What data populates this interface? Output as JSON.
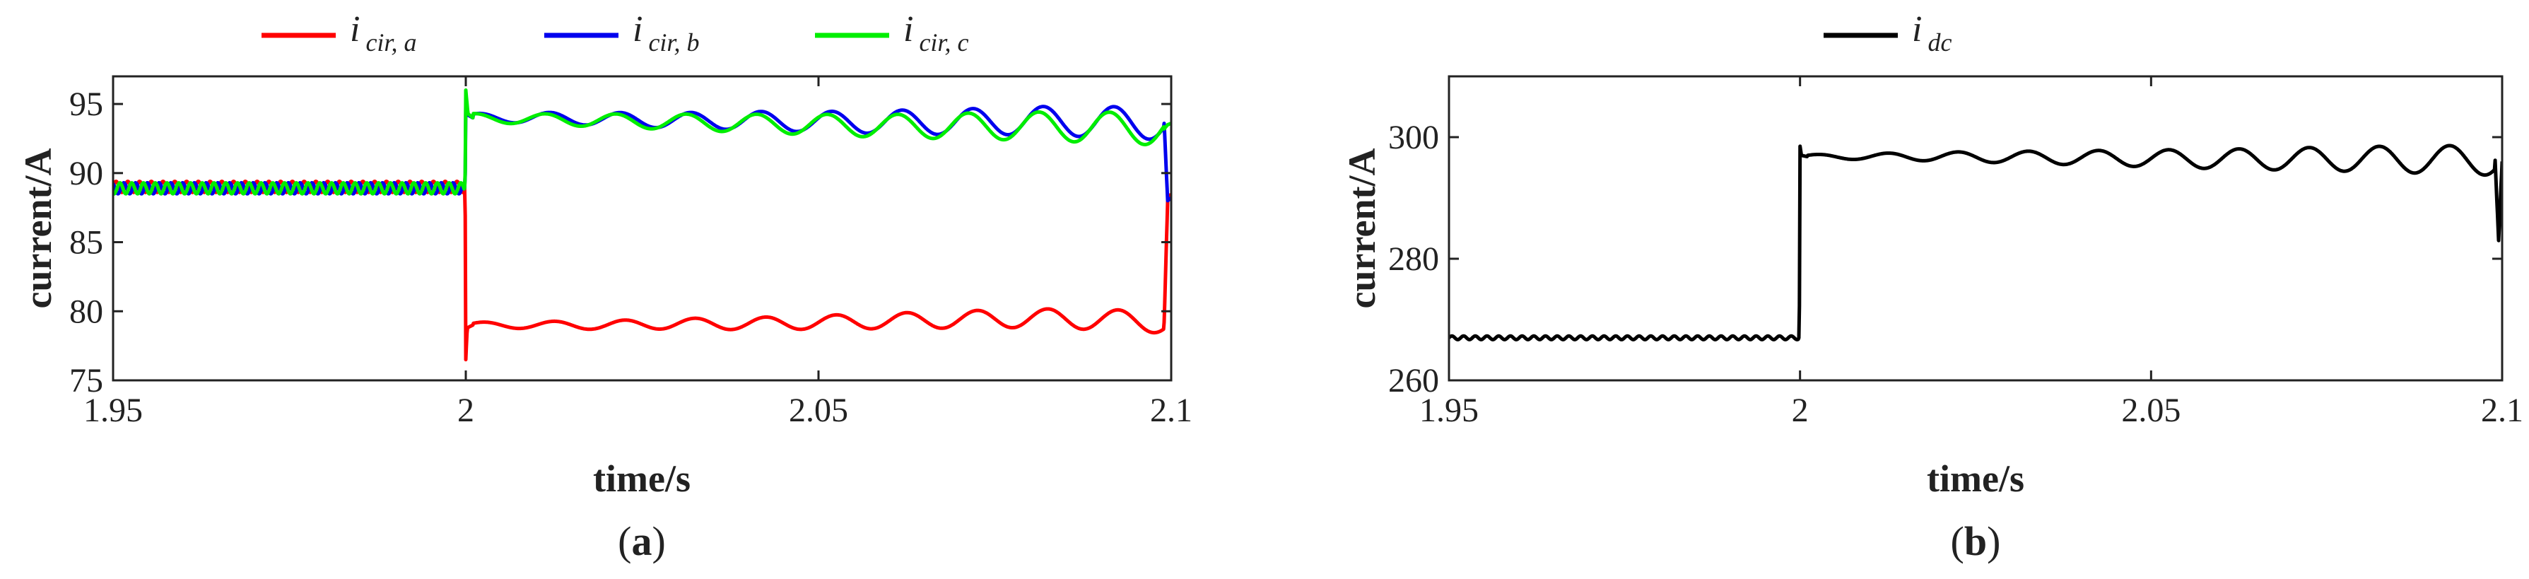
{
  "chart_data": [
    {
      "type": "line",
      "panel_label": "a",
      "xlabel": "time/s",
      "ylabel": "current/A",
      "xlim": [
        1.95,
        2.1
      ],
      "ylim": [
        75,
        97
      ],
      "xticks": [
        {
          "value": 1.95,
          "label": "1.95"
        },
        {
          "value": 2.0,
          "label": "2"
        },
        {
          "value": 2.05,
          "label": "2.05"
        },
        {
          "value": 2.1,
          "label": "2.1"
        }
      ],
      "yticks": [
        {
          "value": 75,
          "label": "75"
        },
        {
          "value": 80,
          "label": "80"
        },
        {
          "value": 85,
          "label": "85"
        },
        {
          "value": 90,
          "label": "90"
        },
        {
          "value": 95,
          "label": "95"
        }
      ],
      "grid": false,
      "legend_position": "top",
      "step_time": 2.0,
      "series": [
        {
          "name": "i_cir,a",
          "legend_main": "i",
          "legend_sub": "cir, a",
          "color": "#ff0000",
          "x": [
            1.95,
            1.9999,
            2.0,
            2.0002,
            2.001,
            2.01,
            2.02,
            2.03,
            2.04,
            2.05,
            2.06,
            2.07,
            2.08,
            2.09,
            2.099,
            2.0995,
            2.1
          ],
          "y": [
            89.0,
            89.0,
            76.5,
            78.8,
            79.0,
            79.0,
            79.0,
            79.1,
            79.1,
            79.2,
            79.3,
            79.4,
            79.5,
            79.4,
            79.2,
            88.0,
            88.5
          ],
          "ripple_before_step": 0.4,
          "ripple_after_step": [
            0.2,
            0.8
          ]
        },
        {
          "name": "i_cir,b",
          "legend_main": "i",
          "legend_sub": "cir, b",
          "color": "#0000ee",
          "x": [
            1.95,
            1.9999,
            2.0,
            2.0003,
            2.001,
            2.01,
            2.02,
            2.03,
            2.04,
            2.05,
            2.06,
            2.07,
            2.08,
            2.09,
            2.099,
            2.0995,
            2.1
          ],
          "y": [
            88.9,
            88.9,
            94.8,
            94.2,
            94.0,
            94.0,
            93.9,
            93.8,
            93.8,
            93.7,
            93.7,
            93.7,
            93.8,
            93.7,
            93.6,
            88.0,
            88.2
          ],
          "ripple_before_step": 0.4,
          "ripple_after_step": [
            0.3,
            1.2
          ]
        },
        {
          "name": "i_cir,c",
          "legend_main": "i",
          "legend_sub": "cir, c",
          "color": "#00ee00",
          "x": [
            1.95,
            1.9999,
            2.0,
            2.0003,
            2.001,
            2.01,
            2.02,
            2.03,
            2.04,
            2.05,
            2.06,
            2.07,
            2.08,
            2.09,
            2.099,
            2.0995,
            2.1
          ],
          "y": [
            88.9,
            88.9,
            96.0,
            94.3,
            94.0,
            93.9,
            93.8,
            93.7,
            93.6,
            93.5,
            93.4,
            93.4,
            93.4,
            93.3,
            93.2,
            93.5,
            93.6
          ],
          "ripple_before_step": 0.4,
          "ripple_after_step": [
            0.3,
            1.2
          ]
        }
      ]
    },
    {
      "type": "line",
      "panel_label": "b",
      "xlabel": "time/s",
      "ylabel": "current/A",
      "xlim": [
        1.95,
        2.1
      ],
      "ylim": [
        260,
        310
      ],
      "xticks": [
        {
          "value": 1.95,
          "label": "1.95"
        },
        {
          "value": 2.0,
          "label": "2"
        },
        {
          "value": 2.05,
          "label": "2.05"
        },
        {
          "value": 2.1,
          "label": "2.1"
        }
      ],
      "yticks": [
        {
          "value": 260,
          "label": "260"
        },
        {
          "value": 280,
          "label": "280"
        },
        {
          "value": 300,
          "label": "300"
        }
      ],
      "grid": false,
      "legend_position": "top",
      "step_time": 2.0,
      "series": [
        {
          "name": "i_dc",
          "legend_main": "i",
          "legend_sub": "dc",
          "color": "#000000",
          "x": [
            1.95,
            1.9999,
            2.0,
            2.0002,
            2.001,
            2.01,
            2.02,
            2.03,
            2.04,
            2.05,
            2.06,
            2.07,
            2.08,
            2.09,
            2.099,
            2.0995,
            2.1
          ],
          "y": [
            267.0,
            267.0,
            298.5,
            297.0,
            296.8,
            296.8,
            296.8,
            296.7,
            296.6,
            296.5,
            296.4,
            296.4,
            296.4,
            296.3,
            296.2,
            283.0,
            296.0
          ],
          "ripple_before_step": 0.3,
          "ripple_after_step": [
            0.3,
            2.5
          ]
        }
      ]
    }
  ]
}
